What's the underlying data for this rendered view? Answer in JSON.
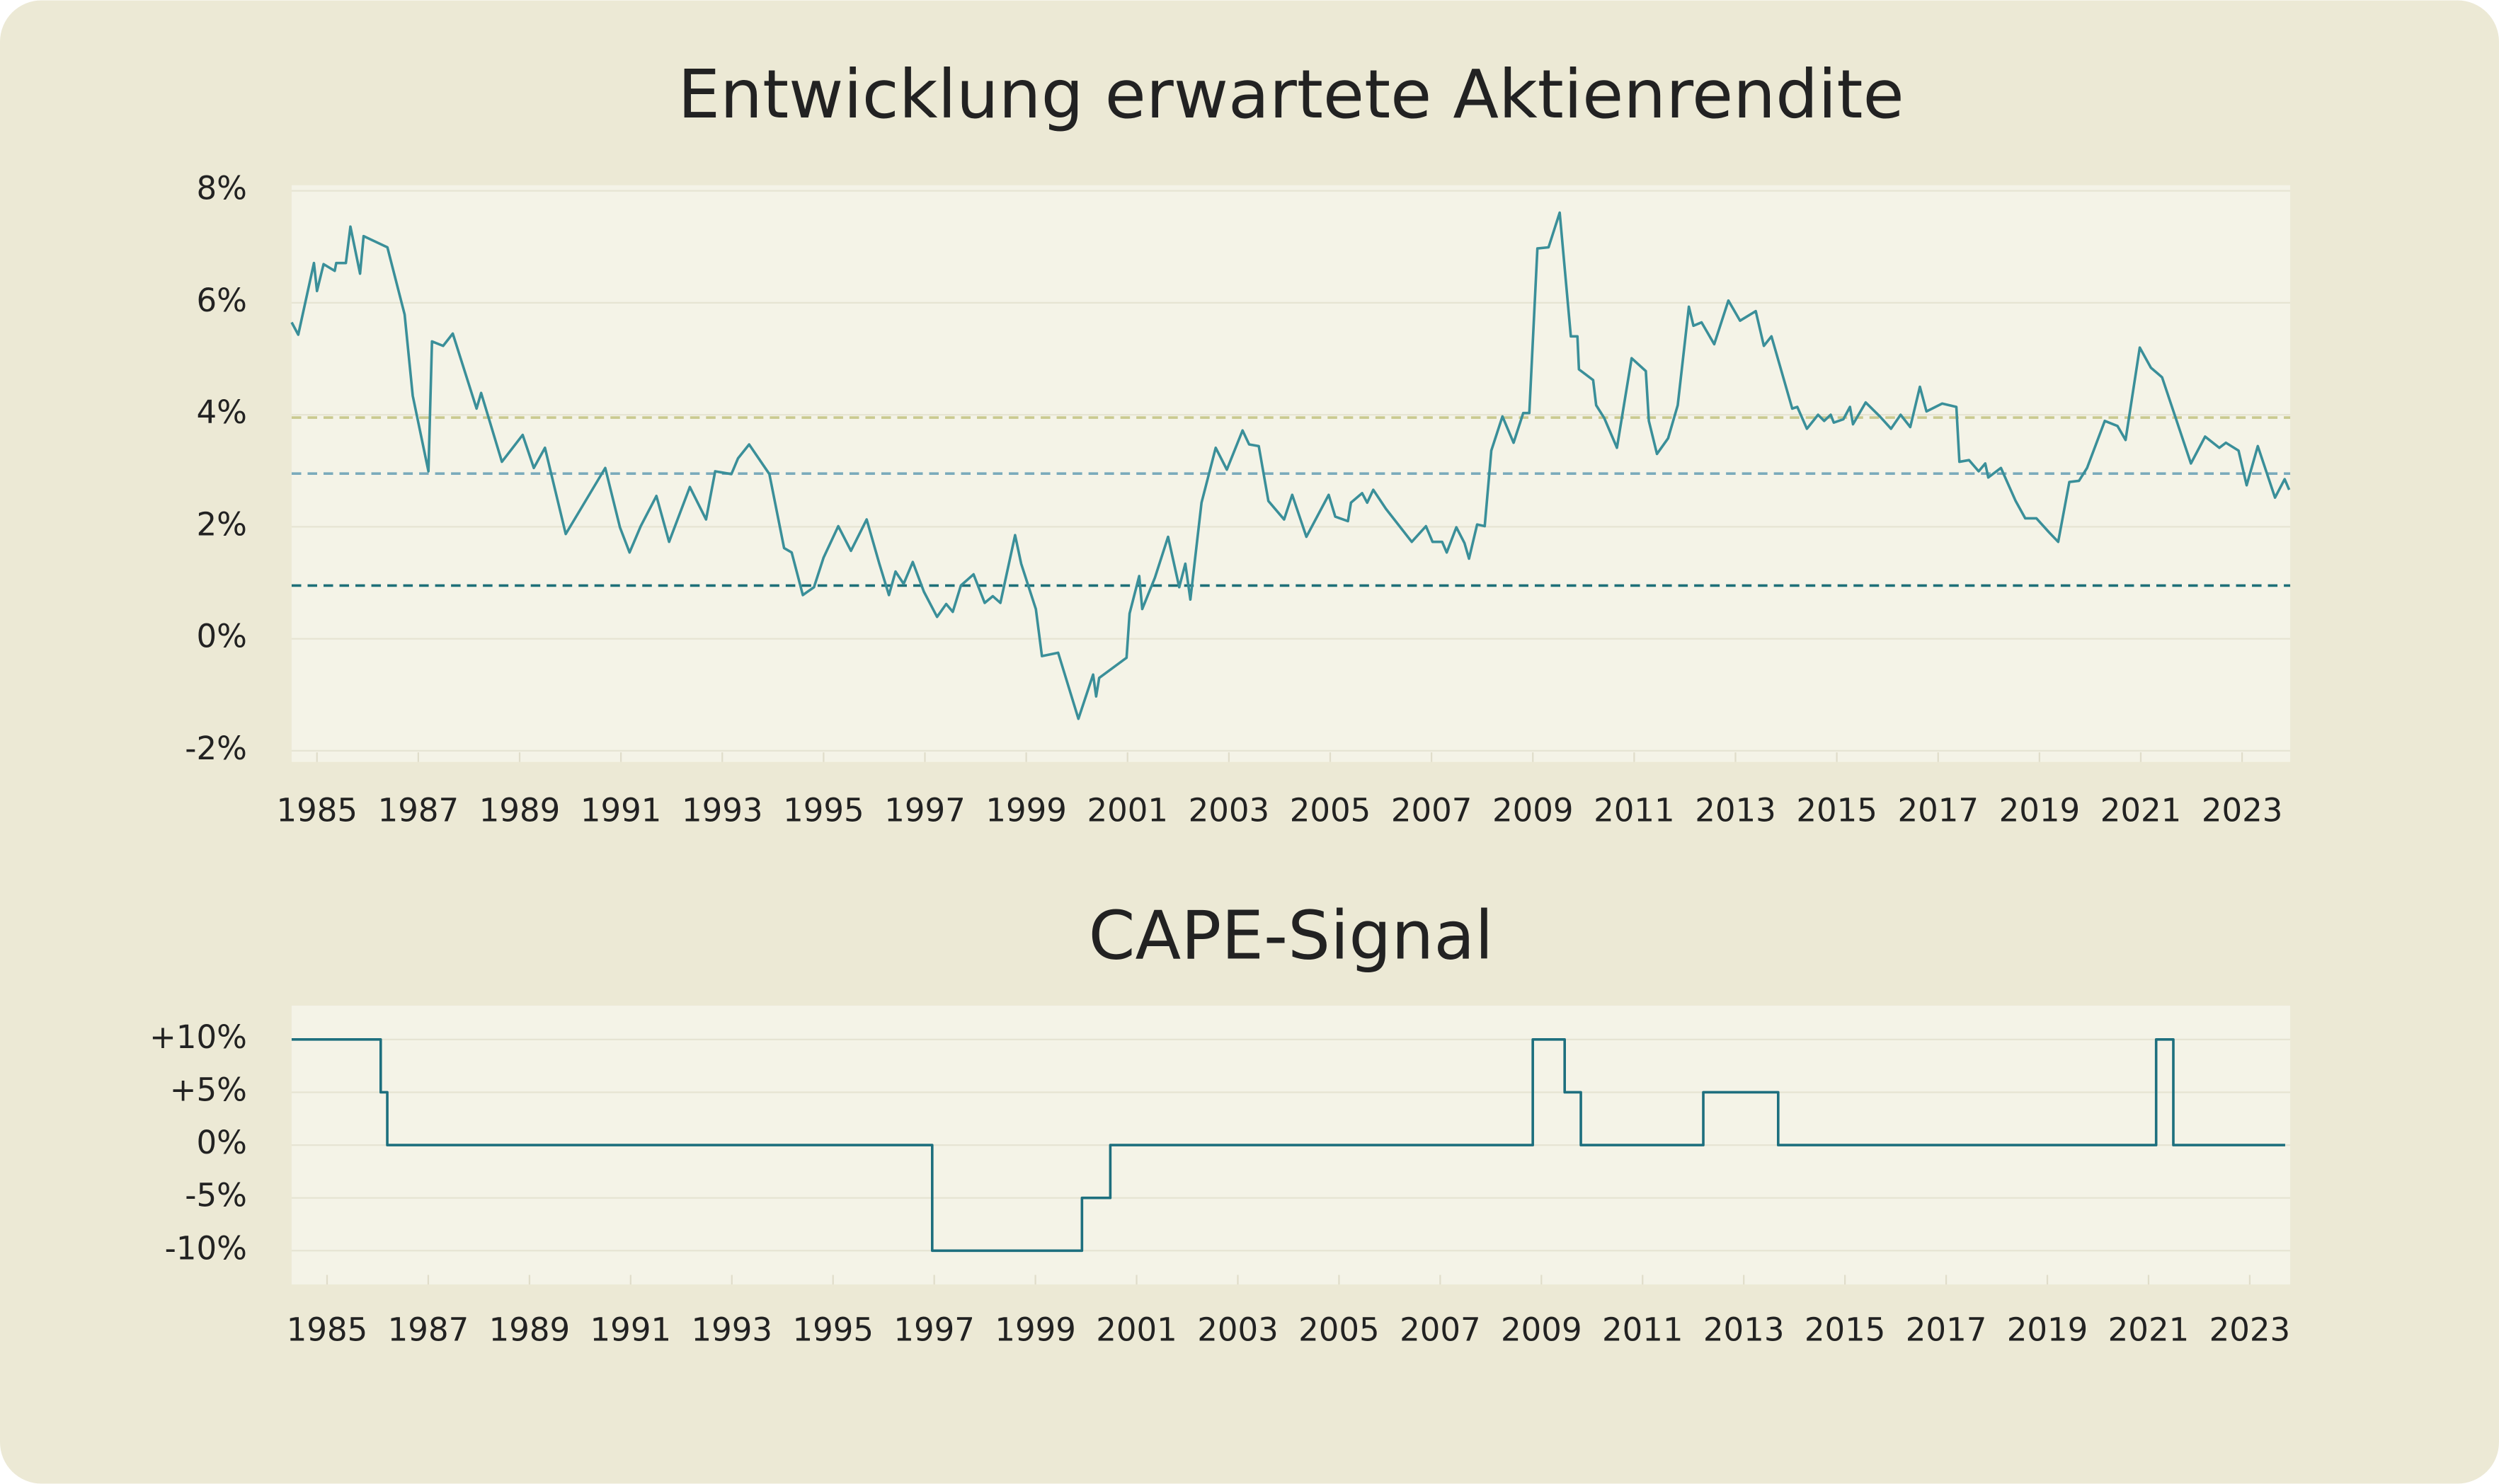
{
  "chart_data": [
    {
      "type": "line",
      "title": "Entwicklung erwartete Aktienrendite",
      "color": "#3a8f99",
      "grid": true,
      "xlim": [
        1984.5,
        2023.95
      ],
      "ylim": [
        -2.2,
        8.1
      ],
      "xticks": [
        1985,
        1987,
        1989,
        1991,
        1993,
        1995,
        1997,
        1999,
        2001,
        2003,
        2005,
        2007,
        2009,
        2011,
        2013,
        2015,
        2017,
        2019,
        2021,
        2023
      ],
      "yticks": [
        {
          "value": -2,
          "label": "-2%"
        },
        {
          "value": 0,
          "label": "0%"
        },
        {
          "value": 2,
          "label": "2%"
        },
        {
          "value": 4,
          "label": "4%"
        },
        {
          "value": 6,
          "label": "6%"
        },
        {
          "value": 8,
          "label": "8%"
        }
      ],
      "reference_lines": [
        {
          "value": 3.95,
          "color": "#c9c98f"
        },
        {
          "value": 2.95,
          "color": "#7aaabb"
        },
        {
          "value": 0.95,
          "color": "#1d6f78"
        }
      ],
      "x": [
        1984.5,
        1984.63,
        1984.94,
        1985.0,
        1985.13,
        1985.35,
        1985.38,
        1985.57,
        1985.66,
        1985.85,
        1985.92,
        1986.39,
        1986.73,
        1986.89,
        1987.2,
        1987.27,
        1987.49,
        1987.68,
        1988.15,
        1988.24,
        1988.65,
        1989.06,
        1989.28,
        1989.5,
        1989.91,
        1990.69,
        1990.98,
        1991.17,
        1991.39,
        1991.7,
        1991.95,
        1992.36,
        1992.68,
        1992.86,
        1993.18,
        1993.31,
        1993.53,
        1993.93,
        1994.22,
        1994.37,
        1994.59,
        1994.81,
        1995.0,
        1995.29,
        1995.54,
        1995.85,
        1996.1,
        1996.29,
        1996.42,
        1996.58,
        1996.76,
        1996.98,
        1997.24,
        1997.42,
        1997.55,
        1997.71,
        1997.96,
        1998.18,
        1998.34,
        1998.49,
        1998.78,
        1998.9,
        1999.19,
        1999.31,
        1999.63,
        2000.03,
        2000.32,
        2000.38,
        2000.44,
        2000.98,
        2001.04,
        2001.23,
        2001.29,
        2001.54,
        2001.8,
        2002.02,
        2002.14,
        2002.24,
        2002.46,
        2002.74,
        2002.96,
        2003.27,
        2003.4,
        2003.59,
        2003.78,
        2004.09,
        2004.25,
        2004.53,
        2004.97,
        2005.1,
        2005.35,
        2005.41,
        2005.63,
        2005.73,
        2005.85,
        2006.1,
        2006.29,
        2006.61,
        2006.89,
        2007.02,
        2007.21,
        2007.3,
        2007.49,
        2007.65,
        2007.74,
        2007.9,
        2008.05,
        2008.18,
        2008.4,
        2008.62,
        2008.81,
        2008.93,
        2009.09,
        2009.31,
        2009.53,
        2009.75,
        2009.88,
        2009.91,
        2010.19,
        2010.25,
        2010.41,
        2010.66,
        2010.95,
        2011.23,
        2011.29,
        2011.45,
        2011.67,
        2011.86,
        2012.08,
        2012.17,
        2012.33,
        2012.58,
        2012.86,
        2013.09,
        2013.4,
        2013.56,
        2013.71,
        2014.12,
        2014.22,
        2014.41,
        2014.63,
        2014.75,
        2014.88,
        2014.94,
        2015.13,
        2015.26,
        2015.32,
        2015.57,
        2015.85,
        2016.07,
        2016.26,
        2016.45,
        2016.64,
        2016.77,
        2017.08,
        2017.36,
        2017.42,
        2017.61,
        2017.8,
        2017.93,
        2017.99,
        2018.24,
        2018.53,
        2018.72,
        2018.94,
        2019.19,
        2019.37,
        2019.59,
        2019.78,
        2019.94,
        2020.29,
        2020.54,
        2020.7,
        2020.98,
        2021.2,
        2021.42,
        2021.99,
        2022.27,
        2022.55,
        2022.68,
        2022.93,
        2023.09,
        2023.31,
        2023.65,
        2023.84,
        2023.93
      ],
      "values": [
        5.65,
        5.43,
        6.71,
        6.21,
        6.69,
        6.57,
        6.71,
        6.71,
        7.36,
        6.52,
        7.19,
        6.99,
        5.79,
        4.34,
        2.99,
        5.31,
        5.23,
        5.45,
        4.11,
        4.39,
        3.16,
        3.64,
        3.05,
        3.41,
        1.87,
        3.05,
        1.99,
        1.54,
        2.01,
        2.55,
        1.73,
        2.71,
        2.13,
        2.99,
        2.94,
        3.22,
        3.47,
        2.94,
        1.62,
        1.54,
        0.78,
        0.92,
        1.45,
        2.01,
        1.57,
        2.13,
        1.34,
        0.78,
        1.2,
        0.98,
        1.37,
        0.84,
        0.39,
        0.62,
        0.48,
        0.95,
        1.15,
        0.64,
        0.76,
        0.64,
        1.85,
        1.34,
        0.53,
        -0.31,
        -0.25,
        -1.43,
        -0.64,
        -1.03,
        -0.7,
        -0.34,
        0.45,
        1.12,
        0.53,
        1.09,
        1.82,
        0.92,
        1.34,
        0.7,
        2.43,
        3.41,
        3.02,
        3.72,
        3.47,
        3.44,
        2.46,
        2.13,
        2.57,
        1.82,
        2.57,
        2.18,
        2.1,
        2.43,
        2.6,
        2.43,
        2.66,
        2.32,
        2.1,
        1.73,
        2.01,
        1.73,
        1.73,
        1.54,
        1.99,
        1.71,
        1.43,
        2.04,
        2.01,
        3.36,
        3.97,
        3.5,
        4.03,
        4.03,
        6.97,
        6.99,
        7.61,
        5.4,
        5.4,
        4.81,
        4.62,
        4.17,
        3.94,
        3.41,
        5.01,
        4.78,
        3.89,
        3.3,
        3.58,
        4.17,
        5.93,
        5.59,
        5.65,
        5.26,
        6.04,
        5.68,
        5.85,
        5.23,
        5.4,
        4.11,
        4.14,
        3.75,
        4.0,
        3.89,
        4.0,
        3.86,
        3.92,
        4.14,
        3.83,
        4.22,
        3.97,
        3.75,
        4.0,
        3.78,
        4.5,
        4.06,
        4.2,
        4.14,
        3.16,
        3.19,
        2.99,
        3.13,
        2.88,
        3.05,
        2.46,
        2.15,
        2.15,
        1.9,
        1.73,
        2.8,
        2.82,
        3.05,
        3.89,
        3.8,
        3.55,
        5.2,
        4.84,
        4.67,
        3.13,
        3.61,
        3.41,
        3.5,
        3.36,
        2.74,
        3.44,
        2.52,
        2.85,
        2.66
      ]
    },
    {
      "type": "step",
      "title": "CAPE-Signal",
      "color": "#1d6f7e",
      "grid": true,
      "xlim": [
        1984.3,
        2023.8
      ],
      "ylim": [
        -13.2,
        13.2
      ],
      "xticks": [
        1985,
        1987,
        1989,
        1991,
        1993,
        1995,
        1997,
        1999,
        2001,
        2003,
        2005,
        2007,
        2009,
        2011,
        2013,
        2015,
        2017,
        2019,
        2021,
        2023
      ],
      "yticks": [
        {
          "value": -10,
          "label": "-10%"
        },
        {
          "value": -5,
          "label": "-5%"
        },
        {
          "value": 0,
          "label": "0%"
        },
        {
          "value": 5,
          "label": "+5%"
        },
        {
          "value": 10,
          "label": "+10%"
        }
      ],
      "x": [
        1984.3,
        1986.06,
        1986.19,
        1996.96,
        1999.92,
        2000.48,
        2008.83,
        2009.46,
        2009.78,
        2012.2,
        2013.68,
        2021.15,
        2021.49,
        2023.7
      ],
      "values": [
        10,
        5,
        0,
        -10,
        -5,
        0,
        10,
        5,
        0,
        5,
        0,
        10,
        0,
        0
      ]
    }
  ]
}
